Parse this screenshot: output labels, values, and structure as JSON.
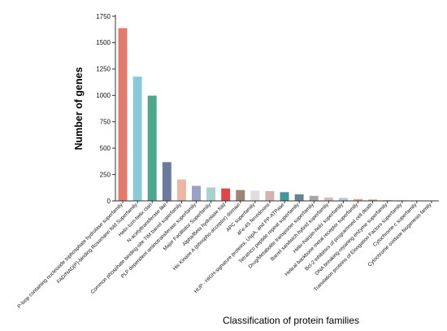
{
  "chart_data": {
    "type": "bar",
    "title": "",
    "xlabel": "Classification of protein families",
    "ylabel": "Number of genes",
    "ylim": [
      0,
      1750
    ],
    "yticks": [
      0,
      250,
      500,
      750,
      1000,
      1250,
      1500,
      1750
    ],
    "grid": false,
    "categories": [
      "P-loop containing nucleoside triphosphate hydrolase superfamily",
      "FAD/NAD(P)-binding Rossmann fold Superfamily",
      "Helix-turn-helix clan",
      "N-acetyltransferase like",
      "Common phosphate binding-site TIM barrel superfamily",
      "PLP dependent aminotransferase superfamily",
      "Major Facilitator Superfamily",
      "Alpha/Beta hydrolase fold",
      "His Kinase A (phospho-acceptor) domain",
      "APC superfamily",
      "4Fe-4S ferredoxins",
      "HUP - HIGH-signature proteins, UspA, and PP-ATPase",
      "Tetratrico peptide repeat superfamily",
      "Drug/Metabolite transporter superfamily",
      "Barrel sandwich hybrid superfamily",
      "Helix-hairpin-helix superfamily",
      "Helical backbone metal receptor superfamily",
      "Bcl-2 inhibitors of programmed cell death",
      "DNA breaking-rejoining enzyme superfamily",
      "Translation proteins of Elongation Factors superfamily",
      "Cytochrome c superfamily",
      "Cytochrome oxidase biogenesis family"
    ],
    "values": [
      1640,
      1180,
      1000,
      370,
      205,
      145,
      130,
      120,
      105,
      100,
      95,
      85,
      65,
      50,
      35,
      30,
      20,
      15,
      10,
      8,
      6,
      5
    ],
    "colors": [
      "#e07b6e",
      "#8ac9d9",
      "#4fa68e",
      "#6b7a9e",
      "#eab6a6",
      "#9aa1c4",
      "#a9d2cc",
      "#d94948",
      "#9b8577",
      "#dedede",
      "#d3b3ae",
      "#42949e",
      "#6a8390",
      "#a9a3a4",
      "#d3bebd",
      "#b7c6cf",
      "#d7a897",
      "#c99b92",
      "#c1cad4",
      "#d1c3cb",
      "#cbd0d6",
      "#c9d4d0"
    ]
  }
}
